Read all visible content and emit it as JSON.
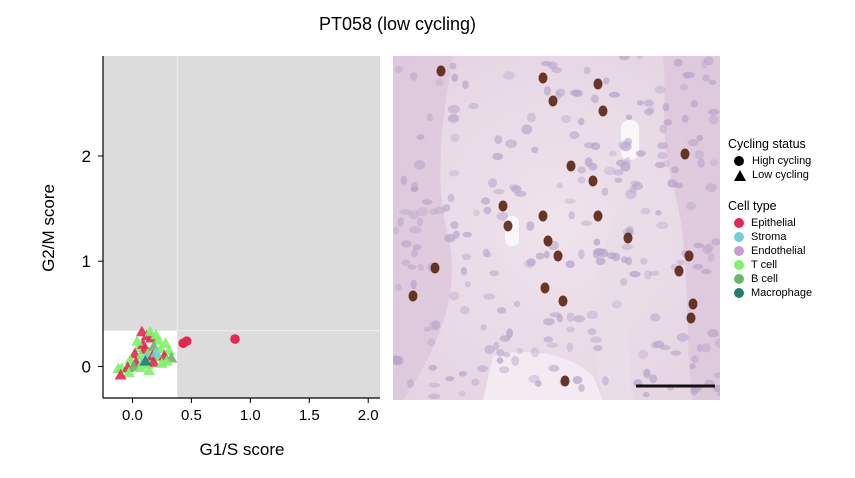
{
  "chart_data": {
    "type": "scatter",
    "title": "PT058 (low cycling)",
    "xlabel": "G1/S score",
    "ylabel": "G2/M score",
    "xlim": [
      -0.25,
      2.1
    ],
    "ylim": [
      -0.3,
      2.95
    ],
    "xticks": [
      "0.0",
      "0.5",
      "1.0",
      "1.5",
      "2.0"
    ],
    "xtick_values": [
      0,
      0.5,
      1.0,
      1.5,
      2.0
    ],
    "yticks": [
      "0",
      "1",
      "2"
    ],
    "ytick_values": [
      0,
      1,
      2
    ],
    "thresholds": {
      "x": 0.38,
      "y": 0.34
    },
    "background_color": "#dcdcdc",
    "legend": {
      "cycling_title": "Cycling status",
      "cycling": [
        {
          "label": "High cycling",
          "shape": "circle"
        },
        {
          "label": "Low cycling",
          "shape": "triangle"
        }
      ],
      "celltype_title": "Cell type",
      "celltypes": [
        {
          "label": "Epithelial",
          "color": "#e8264f"
        },
        {
          "label": "Stroma",
          "color": "#6fd0dc"
        },
        {
          "label": "Endothelial",
          "color": "#c79ad8"
        },
        {
          "label": "T cell",
          "color": "#7cf36a"
        },
        {
          "label": "B cell",
          "color": "#6bb56b"
        },
        {
          "label": "Macrophage",
          "color": "#1f7f6f"
        }
      ]
    },
    "points": [
      {
        "x": 0.87,
        "y": 0.26,
        "type": "Epithelial",
        "cycling": "high"
      },
      {
        "x": 0.46,
        "y": 0.24,
        "type": "Epithelial",
        "cycling": "high"
      },
      {
        "x": 0.43,
        "y": 0.22,
        "type": "Epithelial",
        "cycling": "high"
      },
      {
        "x": 0.08,
        "y": 0.33,
        "type": "Epithelial",
        "cycling": "low"
      },
      {
        "x": 0.12,
        "y": 0.29,
        "type": "Epithelial",
        "cycling": "low"
      },
      {
        "x": 0.16,
        "y": 0.27,
        "type": "Epithelial",
        "cycling": "low"
      },
      {
        "x": 0.15,
        "y": 0.33,
        "type": "T cell",
        "cycling": "low"
      },
      {
        "x": 0.22,
        "y": 0.25,
        "type": "T cell",
        "cycling": "low"
      },
      {
        "x": 0.28,
        "y": 0.22,
        "type": "T cell",
        "cycling": "low"
      },
      {
        "x": 0.05,
        "y": 0.18,
        "type": "T cell",
        "cycling": "low"
      },
      {
        "x": 0.1,
        "y": 0.16,
        "type": "Epithelial",
        "cycling": "low"
      },
      {
        "x": 0.14,
        "y": 0.14,
        "type": "T cell",
        "cycling": "low"
      },
      {
        "x": 0.18,
        "y": 0.19,
        "type": "B cell",
        "cycling": "low"
      },
      {
        "x": 0.24,
        "y": 0.17,
        "type": "T cell",
        "cycling": "low"
      },
      {
        "x": 0.31,
        "y": 0.15,
        "type": "T cell",
        "cycling": "low"
      },
      {
        "x": 0.02,
        "y": 0.12,
        "type": "Epithelial",
        "cycling": "low"
      },
      {
        "x": 0.07,
        "y": 0.1,
        "type": "T cell",
        "cycling": "low"
      },
      {
        "x": 0.12,
        "y": 0.08,
        "type": "Stroma",
        "cycling": "low"
      },
      {
        "x": 0.17,
        "y": 0.1,
        "type": "Epithelial",
        "cycling": "low"
      },
      {
        "x": 0.22,
        "y": 0.09,
        "type": "T cell",
        "cycling": "low"
      },
      {
        "x": 0.27,
        "y": 0.1,
        "type": "Epithelial",
        "cycling": "low"
      },
      {
        "x": 0.33,
        "y": 0.08,
        "type": "B cell",
        "cycling": "low"
      },
      {
        "x": -0.02,
        "y": 0.06,
        "type": "T cell",
        "cycling": "low"
      },
      {
        "x": 0.03,
        "y": 0.04,
        "type": "Epithelial",
        "cycling": "low"
      },
      {
        "x": 0.08,
        "y": 0.03,
        "type": "Stroma",
        "cycling": "low"
      },
      {
        "x": 0.13,
        "y": 0.02,
        "type": "T cell",
        "cycling": "low"
      },
      {
        "x": 0.18,
        "y": 0.04,
        "type": "Epithelial",
        "cycling": "low"
      },
      {
        "x": 0.25,
        "y": 0.03,
        "type": "T cell",
        "cycling": "low"
      },
      {
        "x": -0.09,
        "y": -0.02,
        "type": "T cell",
        "cycling": "low"
      },
      {
        "x": -0.04,
        "y": -0.01,
        "type": "Epithelial",
        "cycling": "low"
      },
      {
        "x": 0.01,
        "y": 0.0,
        "type": "B cell",
        "cycling": "low"
      },
      {
        "x": 0.07,
        "y": -0.01,
        "type": "T cell",
        "cycling": "low"
      },
      {
        "x": 0.11,
        "y": 0.05,
        "type": "Macrophage",
        "cycling": "low"
      },
      {
        "x": -0.03,
        "y": -0.06,
        "type": "T cell",
        "cycling": "low"
      },
      {
        "x": -0.12,
        "y": -0.02,
        "type": "T cell",
        "cycling": "low"
      },
      {
        "x": -0.1,
        "y": -0.08,
        "type": "Epithelial",
        "cycling": "low"
      },
      {
        "x": 0.2,
        "y": 0.13,
        "type": "Stroma",
        "cycling": "low"
      },
      {
        "x": 0.09,
        "y": 0.21,
        "type": "Epithelial",
        "cycling": "low"
      },
      {
        "x": 0.04,
        "y": 0.24,
        "type": "T cell",
        "cycling": "low"
      },
      {
        "x": 0.29,
        "y": 0.05,
        "type": "T cell",
        "cycling": "low"
      },
      {
        "x": 0.14,
        "y": -0.04,
        "type": "T cell",
        "cycling": "low"
      },
      {
        "x": 0.2,
        "y": 0.3,
        "type": "T cell",
        "cycling": "low"
      }
    ]
  }
}
